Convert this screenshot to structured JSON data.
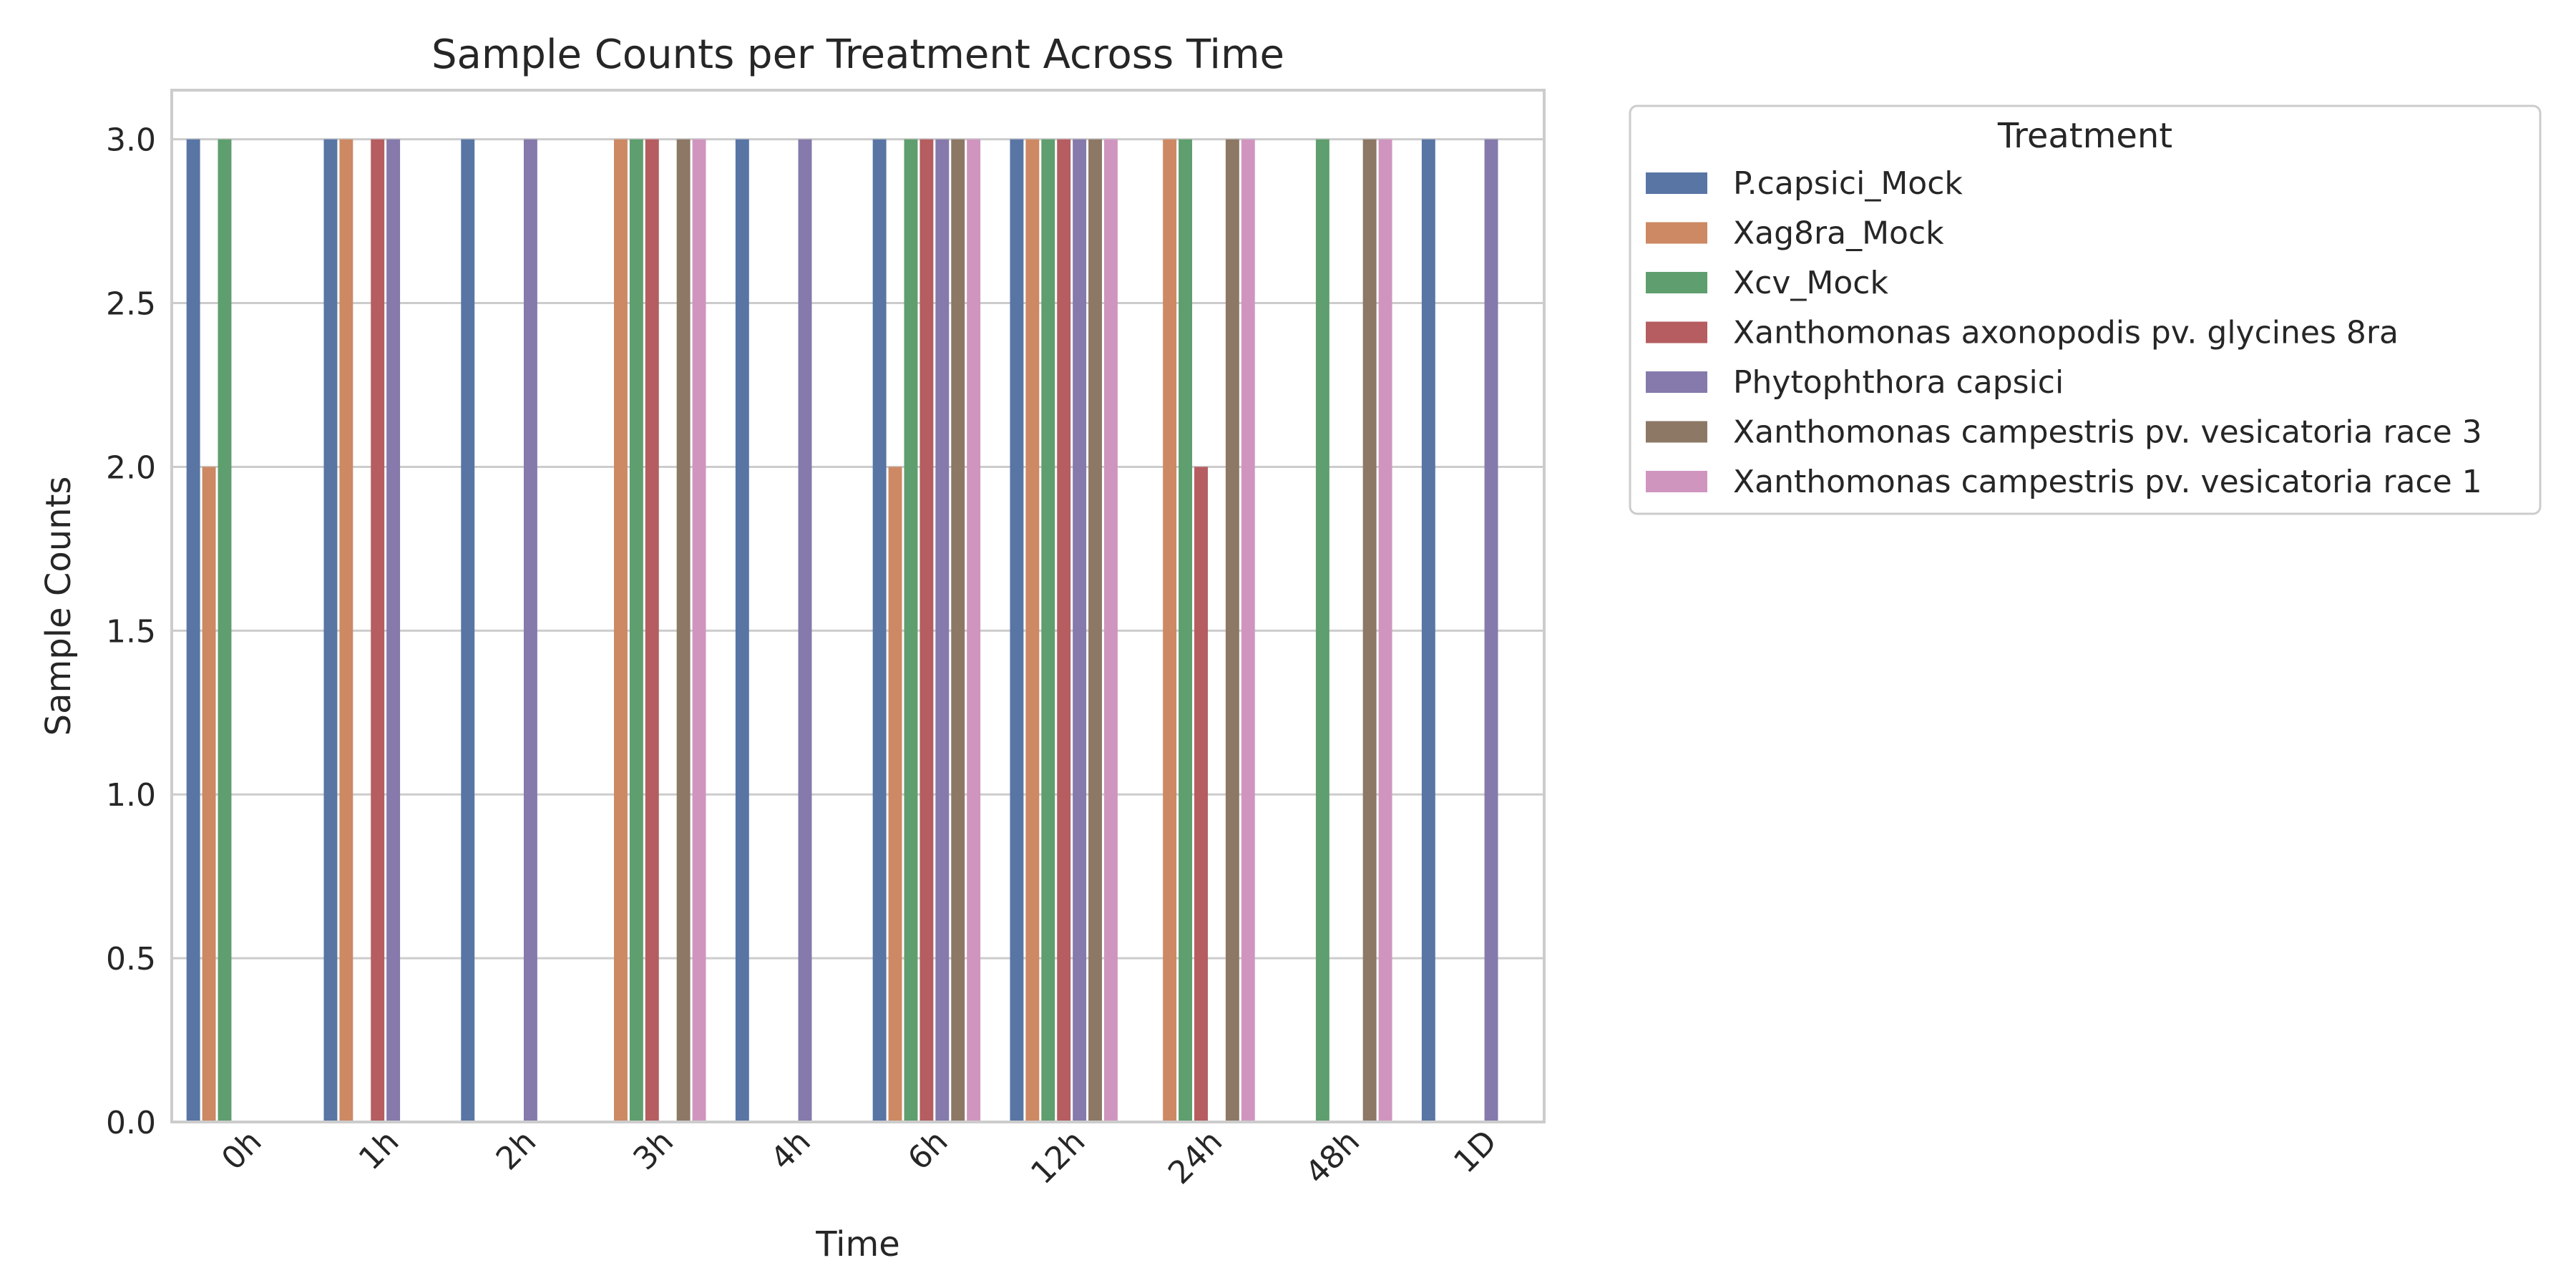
{
  "chart_data": {
    "type": "bar",
    "title": "Sample Counts per Treatment Across Time",
    "xlabel": "Time",
    "ylabel": "Sample Counts",
    "ylim": [
      0,
      3.15
    ],
    "yticks": [
      "0.0",
      "0.5",
      "1.0",
      "1.5",
      "2.0",
      "2.5",
      "3.0"
    ],
    "grid": true,
    "legend_title": "Treatment",
    "legend_position": "outside-right",
    "categories": [
      "0h",
      "1h",
      "2h",
      "3h",
      "4h",
      "6h",
      "12h",
      "24h",
      "48h",
      "1D"
    ],
    "series": [
      {
        "name": "P.capsici_Mock",
        "color": "#5875a4",
        "values": [
          3,
          3,
          3,
          null,
          3,
          3,
          3,
          null,
          null,
          3
        ]
      },
      {
        "name": "Xag8ra_Mock",
        "color": "#cc8963",
        "values": [
          2,
          3,
          null,
          3,
          null,
          2,
          3,
          3,
          null,
          null
        ]
      },
      {
        "name": "Xcv_Mock",
        "color": "#5f9e6e",
        "values": [
          3,
          null,
          null,
          3,
          null,
          3,
          3,
          3,
          3,
          null
        ]
      },
      {
        "name": "Xanthomonas axonopodis pv. glycines 8ra",
        "color": "#b55d60",
        "values": [
          null,
          3,
          null,
          3,
          null,
          3,
          3,
          2,
          null,
          null
        ]
      },
      {
        "name": "Phytophthora capsici",
        "color": "#857aab",
        "values": [
          null,
          3,
          3,
          null,
          3,
          3,
          3,
          null,
          null,
          3
        ]
      },
      {
        "name": "Xanthomonas campestris pv. vesicatoria race 3",
        "color": "#8d7866",
        "values": [
          null,
          null,
          null,
          3,
          null,
          3,
          3,
          3,
          3,
          null
        ]
      },
      {
        "name": "Xanthomonas campestris pv. vesicatoria race 1",
        "color": "#d095bf",
        "values": [
          null,
          null,
          null,
          3,
          null,
          3,
          3,
          3,
          3,
          null
        ]
      }
    ]
  }
}
